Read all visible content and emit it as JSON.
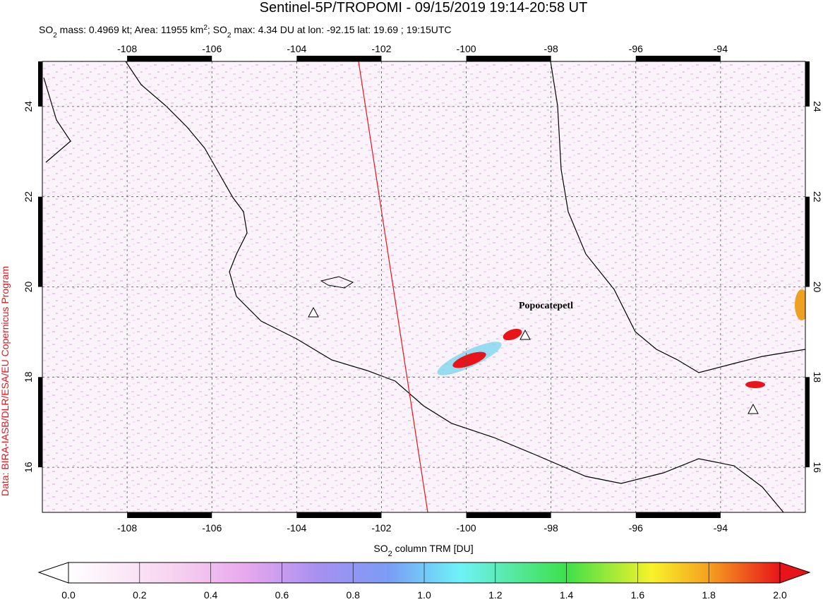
{
  "header": {
    "title": "Sentinel-5P/TROPOMI - 09/15/2019 19:14-20:58 UT",
    "subtitle": [
      "SO",
      "2",
      " mass: 0.4969 kt; Area: 11955 km",
      "2",
      "; SO",
      "2",
      " max: 4.34 DU at lon: -92.15 lat: 19.69 ; 19:15UTC"
    ]
  },
  "map": {
    "xlim": [
      -110,
      -92
    ],
    "ylim": [
      15,
      25
    ],
    "xticks": [
      -108,
      -106,
      -104,
      -102,
      -100,
      -98,
      -96,
      -94
    ],
    "yticks": [
      16,
      18,
      20,
      22,
      24
    ],
    "annotation": "Popocatepetl",
    "credit": "Data: BIRA-IASB/DLR/ESA/EU Copernicus Program"
  },
  "colorbar": {
    "label": [
      "SO",
      "2",
      " column TRM [DU]"
    ],
    "lim": [
      0,
      2
    ],
    "ticks": [
      {
        "value": 0,
        "label": "0.0"
      },
      0.2,
      0.4,
      0.6,
      0.8,
      {
        "value": 1,
        "label": "1.0"
      },
      1.2,
      1.4,
      1.6,
      1.8,
      {
        "value": 2,
        "label": "2.0"
      }
    ]
  }
}
